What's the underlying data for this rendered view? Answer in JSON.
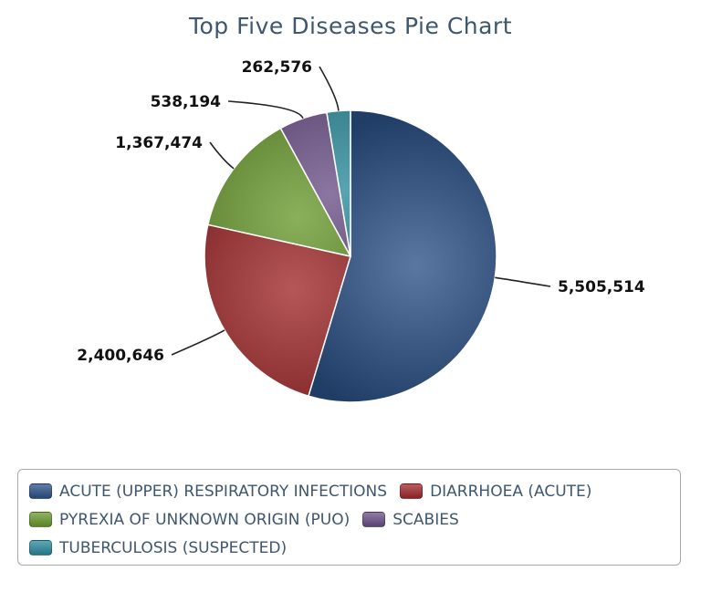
{
  "chart_data": {
    "type": "pie",
    "title": "Top Five Diseases Pie Chart",
    "categories": [
      "ACUTE (UPPER) RESPIRATORY INFECTIONS",
      "DIARRHOEA (ACUTE)",
      "PYREXIA OF UNKNOWN ORIGIN (PUO)",
      "SCABIES",
      "TUBERCULOSIS (SUSPECTED)"
    ],
    "values": [
      5505514,
      2400646,
      1367474,
      538194,
      262576
    ],
    "value_labels": [
      "5,505,514",
      "2,400,646",
      "1,367,474",
      "538,194",
      "262,576"
    ],
    "colors": [
      "#2b5188",
      "#a0282a",
      "#6a9a2e",
      "#6a4f88",
      "#2a8a9c"
    ],
    "legend_placement": "bottom"
  }
}
